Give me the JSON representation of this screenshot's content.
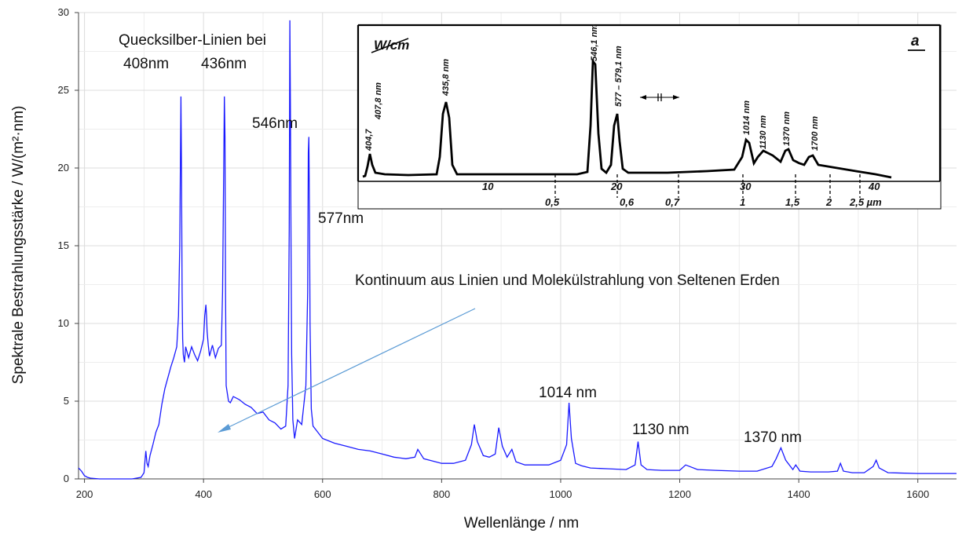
{
  "chart_data": {
    "type": "line",
    "xlabel": "Wellenlänge / nm",
    "ylabel": "Spektrale Bestrahlungsstärke /  W/(m²·nm)",
    "xlim": [
      190,
      1665
    ],
    "ylim": [
      0,
      30
    ],
    "xticks": [
      200,
      400,
      600,
      800,
      1000,
      1200,
      1400,
      1600
    ],
    "yticks": [
      0,
      5,
      10,
      15,
      20,
      25,
      30
    ],
    "grid": true,
    "line_color": "#1a1aff",
    "series": [
      {
        "values_by_wavelength": {
          "x": [
            190,
            195,
            200,
            205,
            210,
            225,
            250,
            280,
            295,
            300,
            303,
            305,
            307,
            310,
            315,
            320,
            325,
            330,
            335,
            340,
            345,
            350,
            355,
            358,
            360,
            362,
            363,
            364,
            365,
            366,
            368,
            370,
            375,
            380,
            385,
            390,
            395,
            400,
            402,
            404,
            405,
            406,
            408,
            410,
            415,
            420,
            425,
            430,
            432,
            434,
            435,
            436,
            437,
            438,
            440,
            442,
            445,
            450,
            460,
            470,
            480,
            490,
            500,
            510,
            520,
            530,
            538,
            542,
            544,
            545,
            546,
            547,
            548,
            550,
            553,
            558,
            565,
            572,
            575,
            576,
            577,
            578,
            579,
            581,
            584,
            590,
            600,
            620,
            640,
            660,
            680,
            700,
            720,
            740,
            755,
            760,
            770,
            780,
            800,
            820,
            840,
            850,
            855,
            860,
            870,
            880,
            890,
            896,
            902,
            910,
            918,
            925,
            940,
            960,
            980,
            1000,
            1010,
            1014,
            1018,
            1025,
            1035,
            1050,
            1080,
            1110,
            1125,
            1130,
            1135,
            1145,
            1170,
            1200,
            1210,
            1230,
            1260,
            1300,
            1330,
            1355,
            1362,
            1370,
            1378,
            1390,
            1395,
            1402,
            1420,
            1450,
            1465,
            1470,
            1475,
            1490,
            1510,
            1525,
            1530,
            1535,
            1550,
            1600,
            1665
          ],
          "y": [
            0.7,
            0.5,
            0.2,
            0.1,
            0.05,
            0,
            0,
            0,
            0.1,
            0.4,
            1.8,
            1.0,
            0.8,
            1.5,
            2.2,
            3.0,
            3.5,
            4.8,
            5.8,
            6.5,
            7.2,
            7.8,
            8.5,
            10.5,
            15,
            24.6,
            20,
            12,
            9.0,
            8.0,
            7.5,
            8.5,
            7.8,
            8.5,
            8.0,
            7.6,
            8.2,
            9.0,
            10.5,
            11.2,
            10.5,
            9.5,
            8.6,
            7.9,
            8.6,
            7.8,
            8.4,
            8.6,
            12,
            20,
            24.6,
            22,
            12,
            6.0,
            5.5,
            5.0,
            4.9,
            5.3,
            5.1,
            4.8,
            4.6,
            4.2,
            4.3,
            3.8,
            3.6,
            3.2,
            3.4,
            6.0,
            16,
            29.5,
            24,
            15,
            8,
            3.8,
            2.6,
            3.8,
            3.5,
            6.0,
            12,
            21,
            22,
            17,
            10,
            4.5,
            3.4,
            3.1,
            2.6,
            2.3,
            2.1,
            1.9,
            1.8,
            1.6,
            1.4,
            1.3,
            1.4,
            1.9,
            1.3,
            1.2,
            1.0,
            1.0,
            1.2,
            2.2,
            3.5,
            2.4,
            1.5,
            1.4,
            1.6,
            3.3,
            2.1,
            1.4,
            1.9,
            1.1,
            0.9,
            0.9,
            0.9,
            1.2,
            2.2,
            4.9,
            2.6,
            1.0,
            0.85,
            0.7,
            0.65,
            0.6,
            0.9,
            2.4,
            0.9,
            0.6,
            0.55,
            0.55,
            0.9,
            0.6,
            0.55,
            0.5,
            0.5,
            0.8,
            1.3,
            2.0,
            1.2,
            0.6,
            0.9,
            0.5,
            0.45,
            0.45,
            0.5,
            1.0,
            0.5,
            0.4,
            0.4,
            0.8,
            1.2,
            0.7,
            0.4,
            0.35,
            0.35
          ]
        }
      }
    ]
  },
  "annotations": {
    "mercury_title": "Quecksilber-Linien bei",
    "l408": "408nm",
    "l436": "436nm",
    "l546": "546nm",
    "l577": "577nm",
    "continuum": "Kontinuum aus Linien und Molekülstrahlung von Seltenen Erden",
    "l1014": "1014 nm",
    "l1130": "1130 nm",
    "l1370": "1370 nm",
    "arrow_color": "#5b9bd5"
  },
  "inset": {
    "unit": "W/cm",
    "panel": "a",
    "peaks": [
      "404,7",
      "407,8 nm",
      "435,8 nm",
      "546,1 nm",
      "577 – 579,1 nm",
      "1014 nm",
      "1130 nm",
      "1370 nm",
      "1700 nm"
    ],
    "top_ticks": [
      "10",
      "20",
      "30",
      "40"
    ],
    "bottom_ticks": [
      "0,5",
      "0,6",
      "0,7",
      "1",
      "1,5",
      "2",
      "2,5 µm"
    ]
  }
}
